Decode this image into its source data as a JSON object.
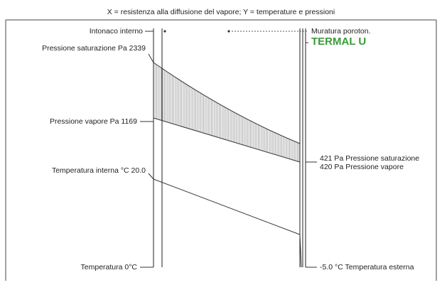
{
  "title": "X = resistenza alla diffusione del vapore; Y = temperature e pressioni",
  "layers": {
    "left": "Intonaco interno",
    "right": "Muratura poroton.",
    "right_brand": "TERMAL U"
  },
  "brand_color": "#3a9a3a",
  "left_labels": {
    "saturation": "Pressione saturazione Pa 2339",
    "vapor": "Pressione vapore Pa 1169",
    "temp_in": "Temperatura interna °C 20.0",
    "temp_zero": "Temperatura 0°C"
  },
  "right_labels": {
    "saturation": "421 Pa Pressione saturazione",
    "vapor": "420 Pa Pressione vapore",
    "temp_out": "-5.0 °C Temperatura esterna"
  },
  "chart_data": {
    "type": "line",
    "title": "X = resistenza alla diffusione del vapore; Y = temperature e pressioni",
    "series": [
      {
        "name": "Pressione saturazione",
        "start": 2339,
        "end": 421,
        "unit": "Pa"
      },
      {
        "name": "Pressione vapore",
        "start": 1169,
        "end": 420,
        "unit": "Pa"
      },
      {
        "name": "Temperatura",
        "start": 20.0,
        "end": -5.0,
        "unit": "°C"
      }
    ],
    "shaded_region": "between saturation and vapour pressure curves"
  }
}
